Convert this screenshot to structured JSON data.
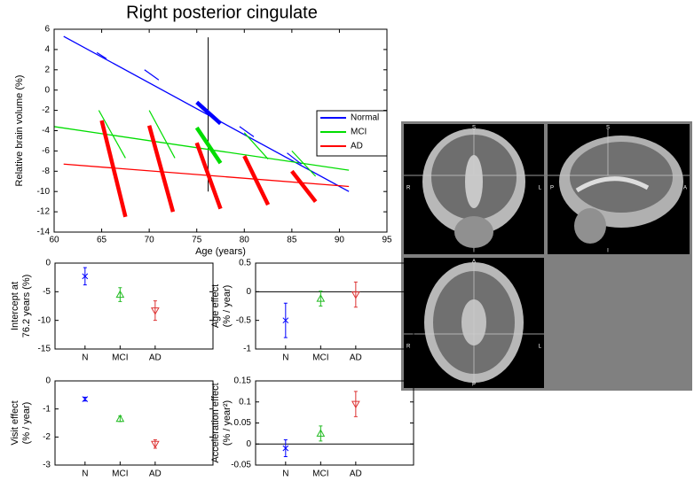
{
  "chart_data": [
    {
      "type": "line",
      "title": "Right posterior cingulate",
      "xlabel": "Age (years)",
      "ylabel": "Relative brain volume (%)",
      "xlim": [
        60,
        95
      ],
      "xticks": [
        60,
        65,
        70,
        75,
        80,
        85,
        90,
        95
      ],
      "ylim": [
        -14,
        6
      ],
      "yticks": [
        -14,
        -12,
        -10,
        -8,
        -6,
        -4,
        -2,
        0,
        2,
        4,
        6
      ],
      "legend": "center right",
      "series": [
        {
          "name": "Normal",
          "color": "#0000ff",
          "x": [
            61,
            91
          ],
          "values": [
            5.3,
            -10
          ]
        },
        {
          "name": "MCI",
          "color": "#00dd00",
          "x": [
            60,
            91
          ],
          "values": [
            -3.6,
            -7.9
          ]
        },
        {
          "name": "AD",
          "color": "#ff0000",
          "x": [
            61,
            91
          ],
          "values": [
            -7.3,
            -9.5
          ]
        }
      ],
      "segments": [
        {
          "color": "#0000ff",
          "thick": false,
          "x": [
            64.5,
            65.5
          ],
          "values": [
            3.7,
            3.1
          ]
        },
        {
          "color": "#0000ff",
          "thick": false,
          "x": [
            69.5,
            71
          ],
          "values": [
            2.0,
            1.0
          ]
        },
        {
          "color": "#0000ff",
          "thick": true,
          "x": [
            75,
            77.5
          ],
          "values": [
            -1.2,
            -3.3
          ]
        },
        {
          "color": "#0000ff",
          "thick": false,
          "x": [
            79.5,
            81
          ],
          "values": [
            -3.6,
            -4.6
          ]
        },
        {
          "color": "#0000ff",
          "thick": false,
          "x": [
            84.5,
            86
          ],
          "values": [
            -6.2,
            -7.3
          ]
        },
        {
          "color": "#00dd00",
          "thick": false,
          "x": [
            64.7,
            67.5
          ],
          "values": [
            -2,
            -6.7
          ]
        },
        {
          "color": "#00dd00",
          "thick": false,
          "x": [
            70,
            72.7
          ],
          "values": [
            -2,
            -6.7
          ]
        },
        {
          "color": "#00dd00",
          "thick": true,
          "x": [
            75,
            77.5
          ],
          "values": [
            -3.7,
            -7.2
          ]
        },
        {
          "color": "#00dd00",
          "thick": false,
          "x": [
            80,
            82.5
          ],
          "values": [
            -4.2,
            -6.8
          ]
        },
        {
          "color": "#00dd00",
          "thick": false,
          "x": [
            85,
            87.5
          ],
          "values": [
            -6,
            -8.5
          ]
        },
        {
          "color": "#ff0000",
          "thick": true,
          "x": [
            65,
            67.5
          ],
          "values": [
            -3,
            -12.5
          ]
        },
        {
          "color": "#ff0000",
          "thick": true,
          "x": [
            70,
            72.5
          ],
          "values": [
            -3.5,
            -12
          ]
        },
        {
          "color": "#ff0000",
          "thick": true,
          "x": [
            75,
            77.5
          ],
          "values": [
            -5.2,
            -11.7
          ]
        },
        {
          "color": "#ff0000",
          "thick": true,
          "x": [
            80,
            82.5
          ],
          "values": [
            -6.5,
            -11.3
          ]
        },
        {
          "color": "#ff0000",
          "thick": true,
          "x": [
            85,
            87.5
          ],
          "values": [
            -8,
            -11
          ]
        }
      ],
      "reference_line": {
        "x": [
          76.2,
          76.2
        ],
        "values": [
          5.2,
          -10
        ]
      }
    },
    {
      "type": "errorbar",
      "ylabel": [
        "Intercept at",
        "76.2 years (%)"
      ],
      "categories": [
        "N",
        "MCI",
        "AD"
      ],
      "values": [
        -2.3,
        -5.5,
        -8.3
      ],
      "errors": [
        1.5,
        1.2,
        1.7
      ],
      "colors": [
        "#0000ff",
        "#22bb22",
        "#dd3333"
      ],
      "markers": [
        "x",
        "triangle-up",
        "triangle-down"
      ],
      "ylim": [
        -15,
        0
      ],
      "yticks": [
        -15,
        -10,
        -5,
        0
      ],
      "zero_line": false
    },
    {
      "type": "errorbar",
      "ylabel": [
        "Age effect",
        "(% / year)"
      ],
      "categories": [
        "N",
        "MCI",
        "AD"
      ],
      "values": [
        -0.5,
        -0.12,
        -0.05
      ],
      "errors": [
        0.3,
        0.13,
        0.22
      ],
      "colors": [
        "#0000ff",
        "#22bb22",
        "#dd3333"
      ],
      "markers": [
        "x",
        "triangle-up",
        "triangle-down"
      ],
      "ylim": [
        -1,
        0.5
      ],
      "yticks": [
        -1,
        -0.5,
        0,
        0.5
      ],
      "zero_line": true
    },
    {
      "type": "errorbar",
      "ylabel": [
        "Visit effect",
        "(% / year)"
      ],
      "categories": [
        "N",
        "MCI",
        "AD"
      ],
      "values": [
        -0.65,
        -1.35,
        -2.25
      ],
      "errors": [
        0.07,
        0.1,
        0.15
      ],
      "colors": [
        "#0000ff",
        "#22bb22",
        "#dd3333"
      ],
      "markers": [
        "x",
        "triangle-up",
        "triangle-down"
      ],
      "ylim": [
        -3,
        0
      ],
      "yticks": [
        -3,
        -2,
        -1,
        0
      ],
      "zero_line": false
    },
    {
      "type": "errorbar",
      "ylabel": [
        "Acceleration effect",
        "(% / year²)"
      ],
      "categories": [
        "N",
        "MCI",
        "AD"
      ],
      "values": [
        -0.01,
        0.025,
        0.095
      ],
      "errors": [
        0.02,
        0.018,
        0.03
      ],
      "colors": [
        "#0000ff",
        "#22bb22",
        "#dd3333"
      ],
      "markers": [
        "x",
        "triangle-up",
        "triangle-down"
      ],
      "ylim": [
        -0.05,
        0.15
      ],
      "yticks": [
        -0.05,
        0,
        0.05,
        0.1,
        0.15
      ],
      "zero_line": true
    }
  ],
  "brain_views": [
    {
      "top": "S",
      "bottom": "I",
      "left": "R",
      "right": "L"
    },
    {
      "top": "S",
      "bottom": "I",
      "left": "P",
      "right": "A"
    },
    {
      "top": "A",
      "bottom": "P",
      "left": "R",
      "right": "L"
    }
  ]
}
